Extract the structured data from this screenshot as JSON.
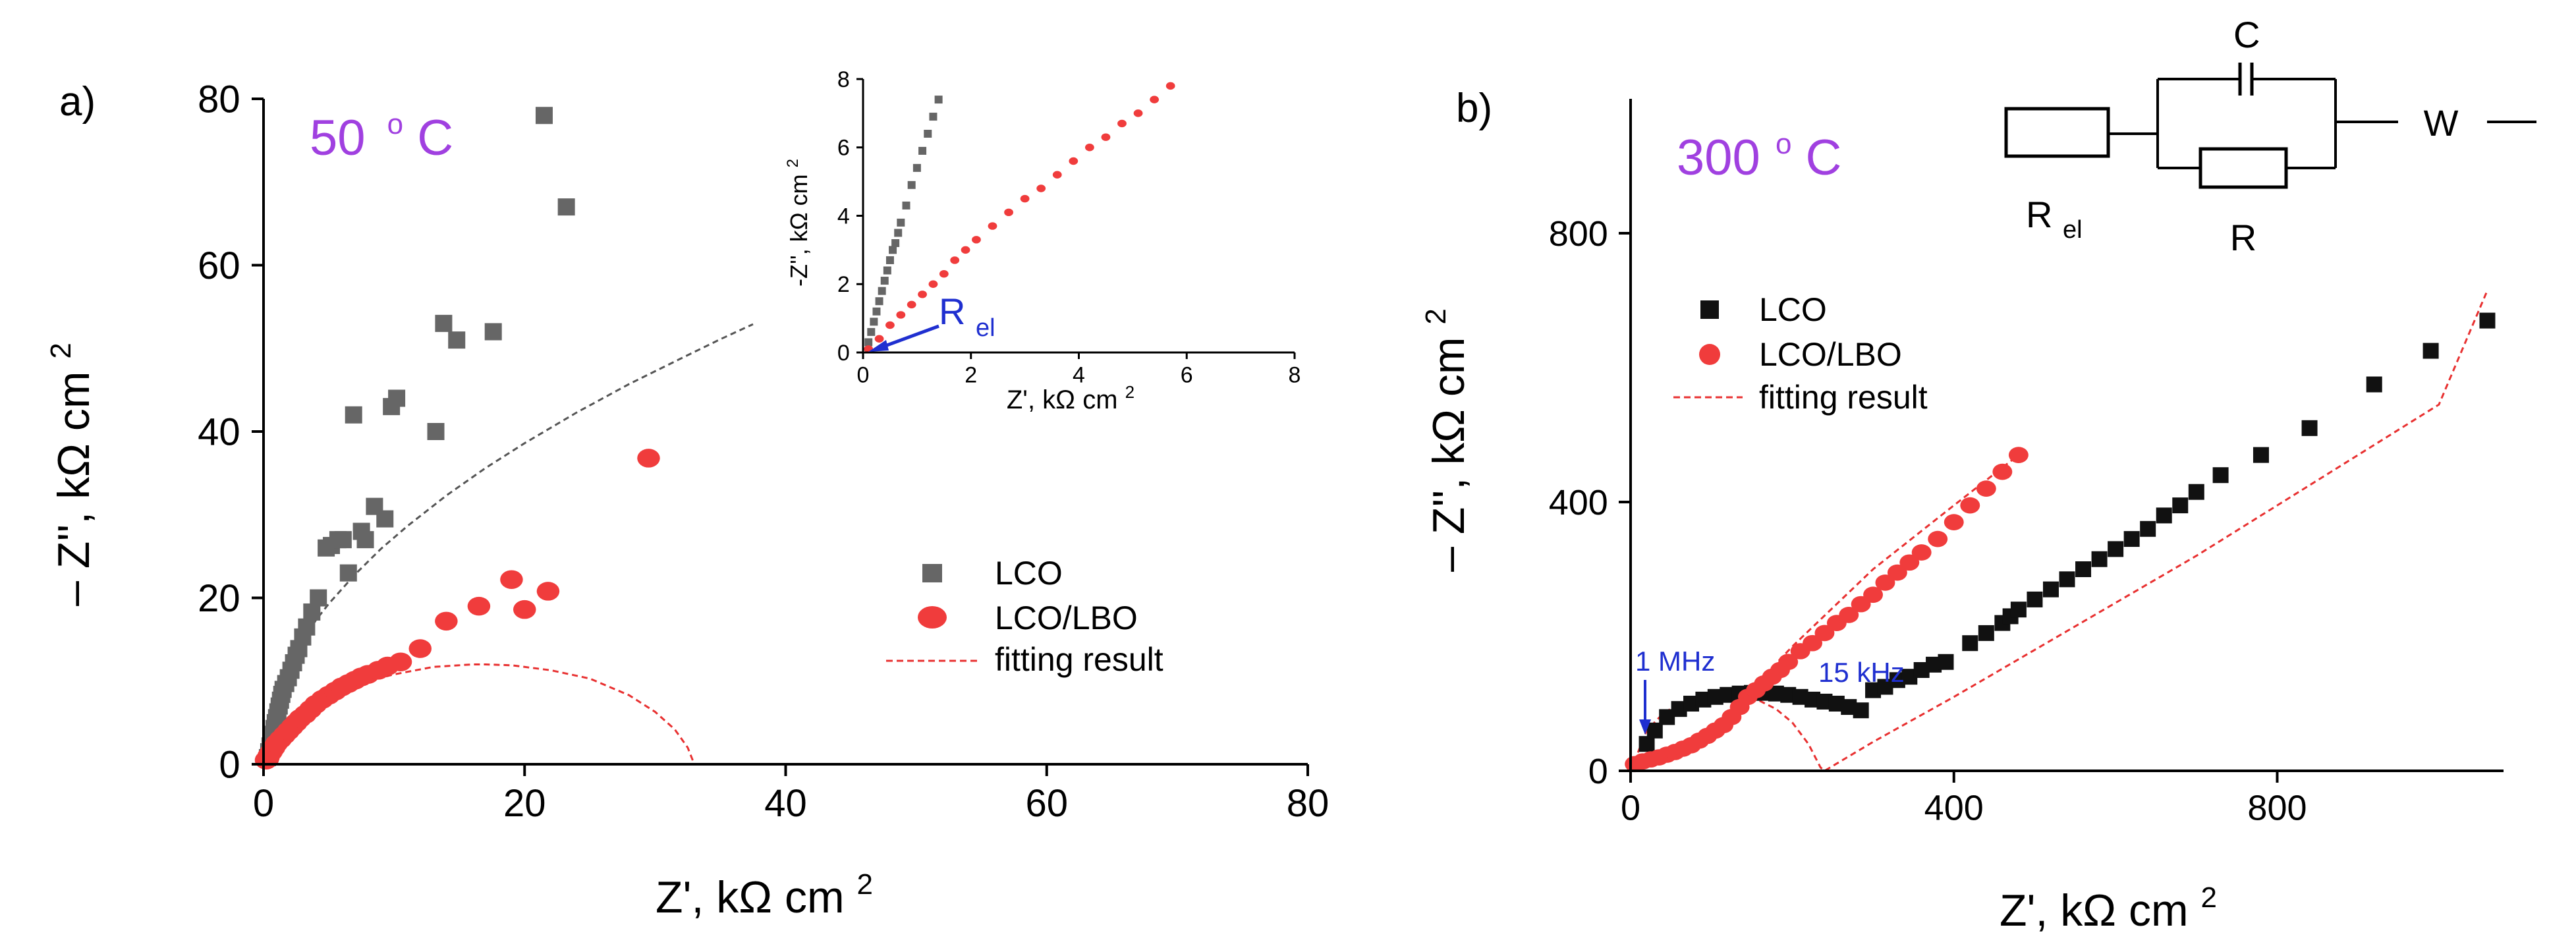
{
  "colors": {
    "lco_a": "#666666",
    "lco_b": "#111111",
    "lbo": "#f03c3c",
    "fit": "#e83030",
    "fit_a_lco": "#555555",
    "temp_label": "#a040e0",
    "annotation": "#1f2fd0",
    "axis": "#000000"
  },
  "chart_data": [
    {
      "panel_label": "a)",
      "type": "scatter",
      "temperature": {
        "value": "50",
        "degree": "o",
        "unit": "C"
      },
      "xlim": [
        0,
        80
      ],
      "ylim": [
        0,
        80
      ],
      "xticks": [
        0,
        20,
        40,
        60,
        80
      ],
      "yticks": [
        0,
        20,
        40,
        60,
        80
      ],
      "xlabel": {
        "text": "Z', kΩ cm",
        "sup": "2"
      },
      "ylabel": {
        "pre": "– Z'', kΩ cm",
        "sup": "2"
      },
      "legend": {
        "position": "right-middle",
        "entries": [
          {
            "label": "LCO",
            "marker": "square",
            "color": "#666666"
          },
          {
            "label": "LCO/LBO",
            "marker": "circle",
            "color": "#f03c3c"
          },
          {
            "label": "fitting result",
            "marker": "dashed-line",
            "color": "#e83030"
          }
        ]
      },
      "series": [
        {
          "name": "LCO",
          "marker": "square",
          "x": [
            0.3,
            0.4,
            0.5,
            0.6,
            0.7,
            0.8,
            0.9,
            1.0,
            1.1,
            1.2,
            1.3,
            1.4,
            1.5,
            1.7,
            1.9,
            2.1,
            2.3,
            2.5,
            2.7,
            3.0,
            3.3,
            3.7,
            4.2,
            4.8,
            5.2,
            5.7,
            6.1,
            6.5,
            6.9,
            7.5,
            7.8,
            8.5,
            9.3,
            9.8,
            10.2,
            13.2,
            13.8,
            14.8,
            17.6,
            21.5,
            23.2
          ],
          "y": [
            0.8,
            1.5,
            2.2,
            2.9,
            3.6,
            4.3,
            5.0,
            5.6,
            6.3,
            7.0,
            7.7,
            8.4,
            9.0,
            9.7,
            10.4,
            11.3,
            12.2,
            13.1,
            13.9,
            15.3,
            16.5,
            18.3,
            20.0,
            26.0,
            26.3,
            27.0,
            27.0,
            23.0,
            42.0,
            28.0,
            27.0,
            31.0,
            29.5,
            43.0,
            44.0,
            40.0,
            53.0,
            51.0,
            52.0,
            78.0,
            67.0
          ]
        },
        {
          "name": "LCO/LBO",
          "marker": "circle",
          "x": [
            0.2,
            0.4,
            0.6,
            0.8,
            1.0,
            1.3,
            1.6,
            1.9,
            2.2,
            2.5,
            2.8,
            3.2,
            3.6,
            4.0,
            4.5,
            5.0,
            5.5,
            6.0,
            6.5,
            7.0,
            7.5,
            8.0,
            8.8,
            9.5,
            10.5,
            12.0,
            14.0,
            16.5,
            19.0,
            20.0,
            21.8,
            29.5
          ],
          "y": [
            0.5,
            1.0,
            1.5,
            2.0,
            2.5,
            3.0,
            3.5,
            4.0,
            4.5,
            5.0,
            5.5,
            6.0,
            6.6,
            7.2,
            7.8,
            8.3,
            8.8,
            9.3,
            9.7,
            10.1,
            10.5,
            10.8,
            11.3,
            11.8,
            12.3,
            13.9,
            17.2,
            19.0,
            22.2,
            18.6,
            20.8,
            36.8
          ]
        }
      ],
      "fits": [
        {
          "name": "LCO fit",
          "style": "dashed",
          "color": "#555555",
          "x": [
            0.5,
            1,
            2,
            3,
            4,
            5,
            7,
            9,
            11,
            14,
            17,
            20,
            24,
            28,
            32,
            35,
            37.5
          ],
          "y": [
            6.1,
            8.6,
            12.2,
            14.9,
            17.3,
            19.3,
            22.8,
            25.9,
            28.6,
            32.3,
            35.6,
            38.6,
            42.3,
            45.7,
            48.8,
            51.1,
            52.9
          ]
        },
        {
          "name": "LCO/LBO fit",
          "style": "dashed",
          "color": "#e83030",
          "x": [
            1.0,
            1.5,
            2.5,
            4,
            6,
            8,
            10,
            13,
            16,
            17,
            19,
            22,
            25,
            28,
            30,
            31.5,
            32.5,
            33
          ],
          "y": [
            0.0,
            2.2,
            4.7,
            7.0,
            8.9,
            10.0,
            10.8,
            11.7,
            12.0,
            12.0,
            11.9,
            11.3,
            10.3,
            8.3,
            6.3,
            4.2,
            2.0,
            0.0
          ]
        }
      ],
      "inset": {
        "xlim": [
          0,
          8
        ],
        "ylim": [
          0,
          8
        ],
        "xticks": [
          0,
          2,
          4,
          6,
          8
        ],
        "yticks": [
          0,
          2,
          4,
          6,
          8
        ],
        "xlabel": {
          "text": "Z', kΩ cm",
          "sup": "2"
        },
        "ylabel": {
          "pre": "-Z'', kΩ cm",
          "sup": "2"
        },
        "annotation": {
          "text": "R",
          "sub": "el",
          "x": 0.25,
          "y": 0.2
        },
        "series": [
          {
            "name": "LCO",
            "x": [
              0.1,
              0.15,
              0.2,
              0.25,
              0.3,
              0.35,
              0.4,
              0.45,
              0.5,
              0.55,
              0.6,
              0.65,
              0.7,
              0.8,
              0.9,
              1.0,
              1.1,
              1.2,
              1.3,
              1.4
            ],
            "y": [
              0.3,
              0.6,
              0.9,
              1.2,
              1.5,
              1.8,
              2.1,
              2.4,
              2.7,
              3.0,
              3.2,
              3.5,
              3.8,
              4.3,
              4.9,
              5.4,
              5.9,
              6.4,
              6.9,
              7.4
            ]
          },
          {
            "name": "LCO/LBO",
            "x": [
              0.1,
              0.3,
              0.5,
              0.7,
              0.9,
              1.1,
              1.3,
              1.5,
              1.7,
              1.9,
              2.1,
              2.4,
              2.7,
              3.0,
              3.3,
              3.6,
              3.9,
              4.2,
              4.5,
              4.8,
              5.1,
              5.4,
              5.7
            ],
            "y": [
              0.1,
              0.4,
              0.8,
              1.1,
              1.4,
              1.7,
              2.0,
              2.3,
              2.7,
              3.0,
              3.3,
              3.7,
              4.1,
              4.5,
              4.8,
              5.2,
              5.6,
              6.0,
              6.3,
              6.7,
              7.0,
              7.4,
              7.8
            ]
          }
        ]
      }
    },
    {
      "panel_label": "b)",
      "type": "scatter",
      "temperature": {
        "value": "300",
        "degree": "o",
        "unit": "C"
      },
      "xlim": [
        0,
        1080
      ],
      "ylim": [
        0,
        1000
      ],
      "xticks": [
        0,
        400,
        800
      ],
      "yticks": [
        0,
        400,
        800
      ],
      "xlabel": {
        "text": "Z', kΩ cm",
        "sup": "2"
      },
      "ylabel": {
        "pre": "– Z'', kΩ cm",
        "sup": "2"
      },
      "legend": {
        "position": "left-middle",
        "entries": [
          {
            "label": "LCO",
            "marker": "square",
            "color": "#111111"
          },
          {
            "label": "LCO/LBO",
            "marker": "circle",
            "color": "#f03c3c"
          },
          {
            "label": "fitting result",
            "marker": "dashed-line",
            "color": "#e83030"
          }
        ]
      },
      "annotations": [
        {
          "text": "1 MHz",
          "x": 18,
          "y": 45
        },
        {
          "text": "15 kHz",
          "x": 175,
          "y": 115
        }
      ],
      "circuit": {
        "labels": [
          "C",
          "W"
        ],
        "r_el": {
          "text": "R",
          "sub": "el"
        },
        "r": "R"
      },
      "series": [
        {
          "name": "LCO",
          "marker": "square",
          "x": [
            20,
            30,
            45,
            60,
            75,
            90,
            105,
            120,
            135,
            150,
            165,
            180,
            195,
            210,
            225,
            240,
            255,
            270,
            285,
            300,
            315,
            330,
            345,
            360,
            375,
            390,
            420,
            440,
            460,
            470,
            480,
            500,
            520,
            540,
            560,
            580,
            600,
            620,
            640,
            660,
            680,
            700,
            730,
            780,
            840,
            920,
            990,
            1060
          ],
          "y": [
            40,
            60,
            80,
            92,
            100,
            106,
            110,
            113,
            115,
            116,
            116,
            115,
            113,
            110,
            106,
            103,
            100,
            95,
            90,
            120,
            125,
            135,
            140,
            150,
            158,
            162,
            190,
            205,
            220,
            230,
            240,
            255,
            270,
            285,
            300,
            315,
            330,
            345,
            360,
            380,
            395,
            415,
            440,
            470,
            510,
            575,
            625,
            670
          ]
        },
        {
          "name": "LCO/LBO",
          "marker": "circle",
          "x": [
            5,
            15,
            25,
            35,
            45,
            55,
            65,
            75,
            85,
            95,
            105,
            115,
            125,
            135,
            145,
            155,
            165,
            175,
            185,
            195,
            210,
            225,
            240,
            255,
            270,
            285,
            300,
            315,
            330,
            345,
            360,
            380,
            400,
            420,
            440,
            460,
            480
          ],
          "y": [
            10,
            14,
            17,
            20,
            24,
            28,
            33,
            38,
            45,
            52,
            60,
            68,
            80,
            95,
            110,
            120,
            130,
            140,
            150,
            162,
            178,
            190,
            205,
            220,
            232,
            248,
            262,
            280,
            295,
            310,
            325,
            345,
            370,
            395,
            420,
            445,
            470
          ]
        }
      ],
      "fits": [
        {
          "name": "LCO fit",
          "style": "dashed",
          "color": "#e83030",
          "x": [
            0,
            20,
            40,
            60,
            80,
            100,
            120,
            140,
            160,
            180,
            200,
            220,
            235,
            240,
            300,
            400,
            500,
            600,
            700,
            800,
            900,
            1000,
            1060
          ],
          "y": [
            0,
            60,
            85,
            100,
            108,
            112,
            113,
            111,
            104,
            92,
            72,
            40,
            5,
            0,
            43,
            110,
            180,
            250,
            320,
            395,
            470,
            545,
            715
          ]
        },
        {
          "name": "LCO/LBO fit",
          "style": "dashed",
          "color": "#e83030",
          "x": [
            0,
            100,
            200,
            300,
            400,
            480
          ],
          "y": [
            0,
            58,
            185,
            300,
            395,
            470
          ]
        }
      ]
    }
  ]
}
